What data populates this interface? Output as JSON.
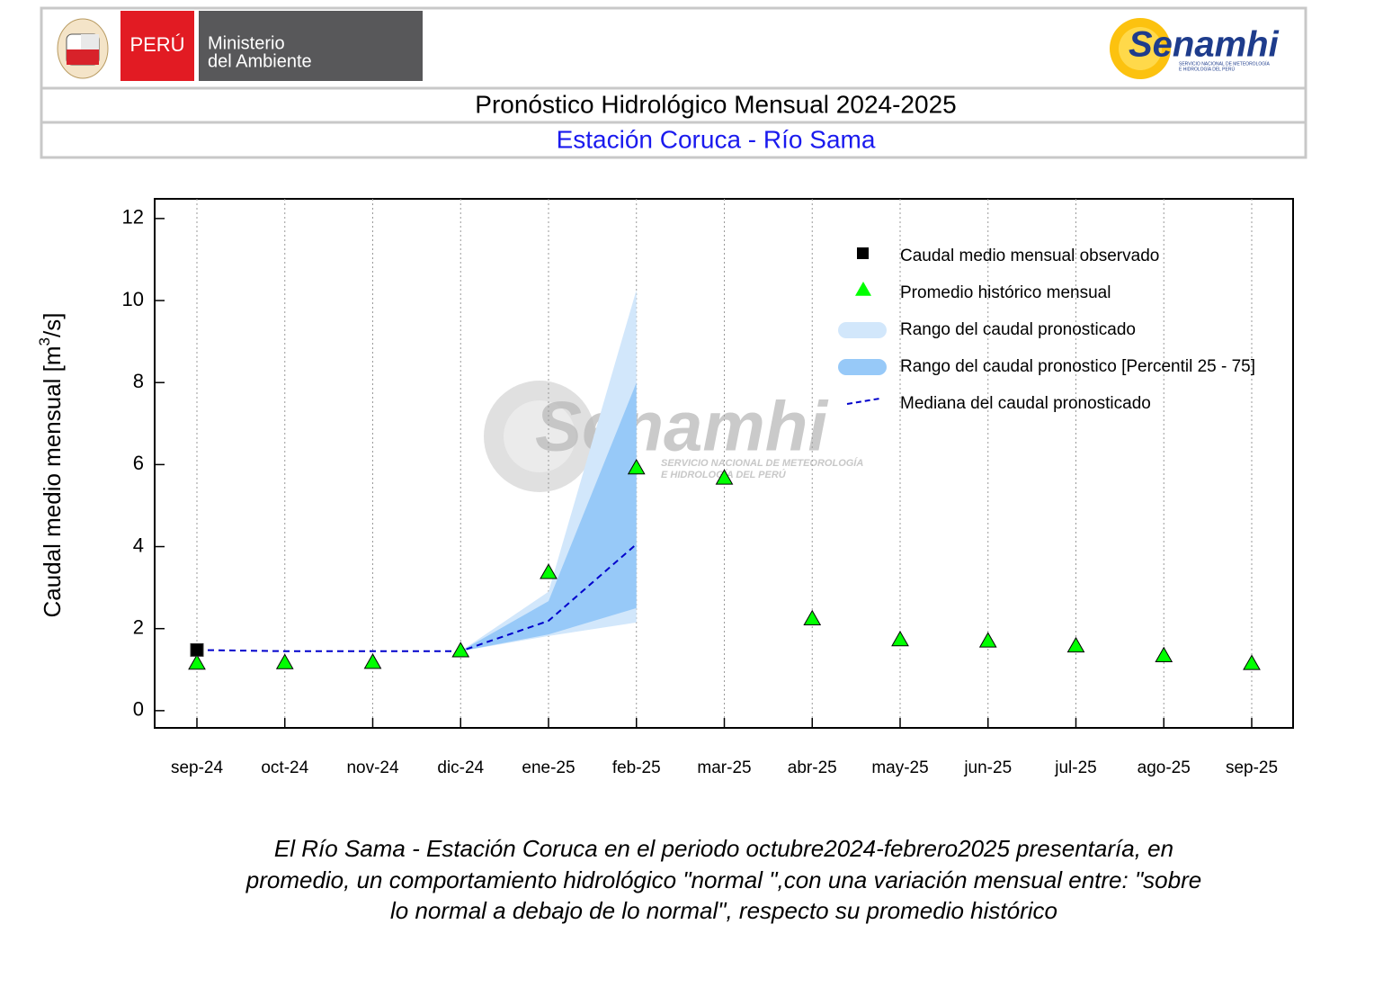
{
  "header": {
    "country": "PERÚ",
    "ministry": [
      "Ministerio",
      "del Ambiente"
    ],
    "logo": "Senamhi",
    "logo_subtitle": [
      "SERVICIO NACIONAL DE METEOROLOGÍA",
      "E HIDROLOGÍA DEL PERÚ"
    ],
    "title": "Pronóstico Hidrológico Mensual 2024-2025",
    "subtitle": "Estación Coruca - Río Sama"
  },
  "chart_data": {
    "type": "line",
    "ylabel": {
      "text": "Caudal medio mensual  [m",
      "sup": "3",
      "end": "/s]"
    },
    "categories": [
      "sep-24",
      "oct-24",
      "nov-24",
      "dic-24",
      "ene-25",
      "feb-25",
      "mar-25",
      "abr-25",
      "may-25",
      "jun-25",
      "jul-25",
      "ago-25",
      "sep-25"
    ],
    "ylim": [
      -0.42,
      12.48
    ],
    "yticks": [
      0,
      2,
      4,
      6,
      8,
      10,
      12
    ],
    "xgrid": true,
    "legend": "upper right",
    "watermark": {
      "text": "Senamhi",
      "sub": [
        "SERVICIO NACIONAL DE METEOROLOGÍA",
        "E HIDROLOGÍA DEL PERÚ"
      ]
    },
    "series": [
      {
        "name": "Caudal medio mensual observado",
        "kind": "square",
        "color": "#000000",
        "values": [
          1.48,
          null,
          null,
          null,
          null,
          null,
          null,
          null,
          null,
          null,
          null,
          null,
          null
        ]
      },
      {
        "name": "Promedio histórico mensual",
        "kind": "triangle",
        "color": "#00ff00",
        "values": [
          1.16,
          1.17,
          1.18,
          1.46,
          3.37,
          5.92,
          5.67,
          2.24,
          1.73,
          1.7,
          1.58,
          1.34,
          1.15
        ]
      },
      {
        "name": "Rango del caudal pronosticado",
        "kind": "band",
        "color": "#d2e7fb",
        "lower": [
          null,
          null,
          null,
          1.45,
          1.82,
          2.15,
          null,
          null,
          null,
          null,
          null,
          null,
          null
        ],
        "upper": [
          null,
          null,
          null,
          1.45,
          2.9,
          10.26,
          null,
          null,
          null,
          null,
          null,
          null,
          null
        ]
      },
      {
        "name": "Rango del caudal pronostico [Percentil 25 - 75]",
        "kind": "band",
        "color": "#97c9f8",
        "lower": [
          null,
          null,
          null,
          1.45,
          1.86,
          2.5,
          null,
          null,
          null,
          null,
          null,
          null,
          null
        ],
        "upper": [
          null,
          null,
          null,
          1.45,
          2.67,
          8.0,
          null,
          null,
          null,
          null,
          null,
          null,
          null
        ]
      },
      {
        "name": "Mediana del caudal pronosticado",
        "kind": "dashed",
        "color": "#0000cc",
        "values": [
          1.48,
          1.45,
          1.45,
          1.45,
          2.19,
          4.06,
          null,
          null,
          null,
          null,
          null,
          null,
          null
        ]
      }
    ]
  },
  "caption": [
    "El Río Sama - Estación Coruca en el periodo octubre2024-febrero2025 presentaría, en",
    "promedio, un comportamiento hidrológico \"normal \",con una variación mensual entre: \"sobre",
    "lo normal a debajo de lo normal\", respecto su promedio histórico"
  ]
}
